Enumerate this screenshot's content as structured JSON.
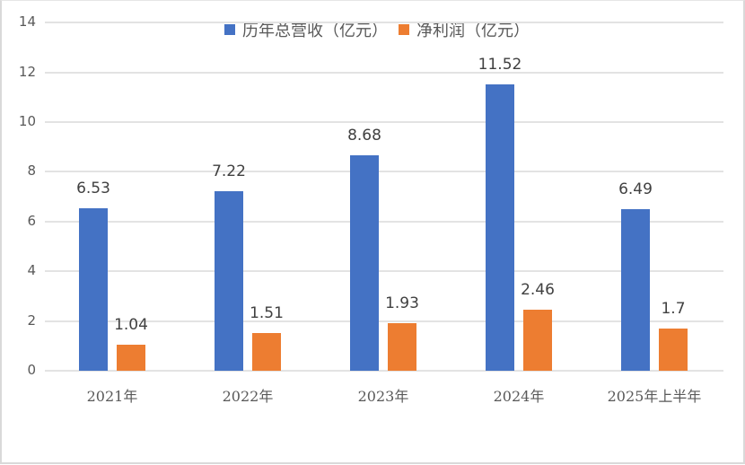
{
  "chart_data": {
    "type": "bar",
    "title": "",
    "xlabel": "",
    "ylabel": "",
    "ylim": [
      0,
      14
    ],
    "yticks": [
      0,
      2,
      4,
      6,
      8,
      10,
      12,
      14
    ],
    "grid": true,
    "legend_position": "top",
    "categories": [
      "2021年",
      "2022年",
      "2023年",
      "2024年",
      "2025年上半年"
    ],
    "series": [
      {
        "name": "历年总营收（亿元）",
        "color": "#4472c4",
        "values": [
          6.53,
          7.22,
          8.68,
          11.52,
          6.49
        ]
      },
      {
        "name": "净利润（亿元）",
        "color": "#ed7d31",
        "values": [
          1.04,
          1.51,
          1.93,
          2.46,
          1.7
        ]
      }
    ]
  },
  "legend": {
    "items": [
      {
        "label": "历年总营收（亿元）",
        "color": "#4472c4"
      },
      {
        "label": "净利润（亿元）",
        "color": "#ed7d31"
      }
    ]
  },
  "labels": {
    "rev": [
      "6.53",
      "7.22",
      "8.68",
      "11.52",
      "6.49"
    ],
    "np": [
      "1.04",
      "1.51",
      "1.93",
      "2.46",
      "1.7"
    ],
    "y": [
      "0",
      "2",
      "4",
      "6",
      "8",
      "10",
      "12",
      "14"
    ]
  }
}
